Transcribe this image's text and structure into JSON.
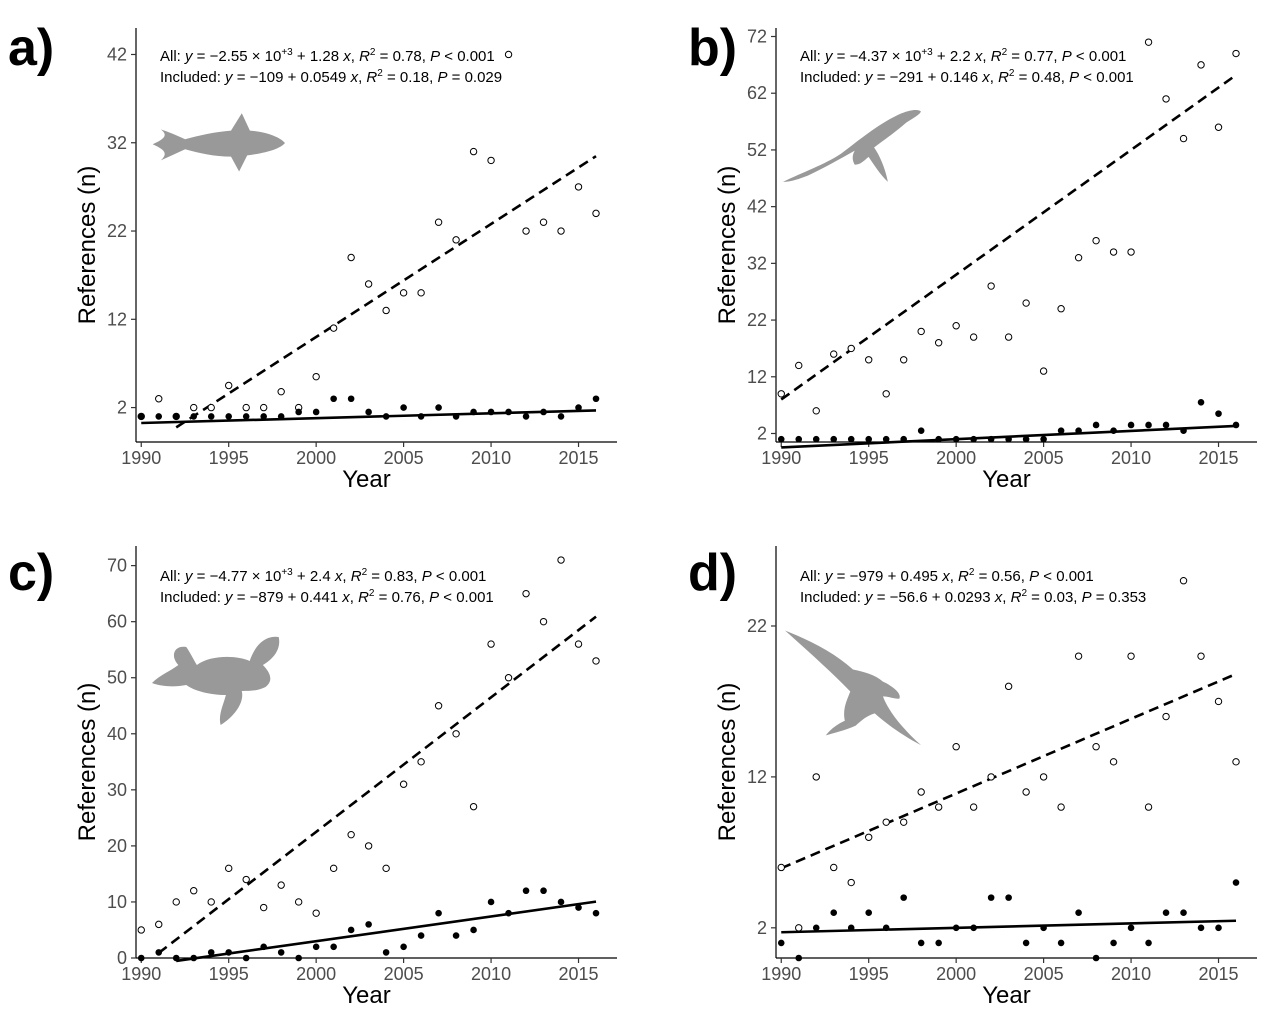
{
  "chart_data": [
    {
      "type": "scatter",
      "panel_label": "a)",
      "silhouette": "tuna-icon",
      "xlabel": "Year",
      "ylabel": "References (n)",
      "xlim": [
        1989.7,
        2017.2
      ],
      "ylim": [
        -1.9,
        45
      ],
      "x_ticks": [
        1990,
        1995,
        2000,
        2005,
        2010,
        2015
      ],
      "y_ticks": [
        2,
        12,
        22,
        32,
        42
      ],
      "equation_all": {
        "prefix": "All: ",
        "lhs": "y",
        "eq": " = −2.55 × 10",
        "exp": "+3",
        "rest": " + 1.28 ",
        "xvar": "x",
        "r2_label": ", R",
        "r2_exp": "2",
        "r2_value": " = 0.78, ",
        "p_label": "P",
        "p_value": " < 0.001"
      },
      "equation_included": {
        "prefix": "Included: ",
        "lhs": "y",
        "eq": " = −109 + 0.0549 ",
        "xvar": "x",
        "r2_label": ", R",
        "r2_exp": "2",
        "r2_value": " = 0.18, ",
        "p_label": "P",
        "p_value": " = 0.029"
      },
      "fit_all": {
        "intercept": -2550,
        "slope": 1.28,
        "x_range": [
          1992,
          2016
        ]
      },
      "fit_included": {
        "intercept": -109,
        "slope": 0.0549,
        "x_range": [
          1990,
          2016
        ]
      },
      "series": [
        {
          "name": "All",
          "marker": "open",
          "x": [
            1990,
            1991,
            1992,
            1993,
            1994,
            1995,
            1996,
            1997,
            1998,
            1999,
            2000,
            2001,
            2002,
            2003,
            2004,
            2005,
            2006,
            2007,
            2008,
            2009,
            2010,
            2011,
            2012,
            2013,
            2014,
            2015,
            2016
          ],
          "y": [
            1,
            3,
            1,
            2,
            2,
            4.5,
            2,
            2,
            3.8,
            2,
            5.5,
            11,
            19,
            16,
            13,
            15,
            15,
            23,
            21,
            31,
            30,
            42,
            22,
            23,
            22,
            27,
            24
          ]
        },
        {
          "name": "Included",
          "marker": "filled",
          "x": [
            1990,
            1991,
            1992,
            1993,
            1994,
            1995,
            1996,
            1997,
            1998,
            1999,
            2000,
            2001,
            2002,
            2003,
            2004,
            2005,
            2006,
            2007,
            2008,
            2009,
            2010,
            2011,
            2012,
            2013,
            2014,
            2015,
            2016
          ],
          "y": [
            1,
            1,
            1,
            1,
            1,
            1,
            1,
            1,
            1,
            1.5,
            1.5,
            3,
            3,
            1.5,
            1,
            2,
            1,
            2,
            1,
            1.5,
            1.5,
            1.5,
            1,
            1.5,
            1,
            2,
            3
          ]
        }
      ]
    },
    {
      "type": "scatter",
      "panel_label": "b)",
      "silhouette": "whale-icon",
      "xlabel": "Year",
      "ylabel": "References (n)",
      "xlim": [
        1989.7,
        2017.2
      ],
      "ylim": [
        0.5,
        73.5
      ],
      "x_ticks": [
        1990,
        1995,
        2000,
        2005,
        2010,
        2015
      ],
      "y_ticks": [
        2,
        12,
        22,
        32,
        42,
        52,
        62,
        72
      ],
      "equation_all": {
        "prefix": "All: ",
        "lhs": "y",
        "eq": " = −4.37 × 10",
        "exp": "+3",
        "rest": " + 2.2 ",
        "xvar": "x",
        "r2_label": ", R",
        "r2_exp": "2",
        "r2_value": " = 0.77, ",
        "p_label": "P",
        "p_value": " < 0.001"
      },
      "equation_included": {
        "prefix": "Included: ",
        "lhs": "y",
        "eq": " = −291 + 0.146 ",
        "xvar": "x",
        "r2_label": ", R",
        "r2_exp": "2",
        "r2_value": " = 0.48, ",
        "p_label": "P",
        "p_value": " < 0.001"
      },
      "fit_all": {
        "intercept": -4370,
        "slope": 2.2,
        "x_range": [
          1990,
          2016
        ]
      },
      "fit_included": {
        "intercept": -291,
        "slope": 0.146,
        "x_range": [
          1990,
          2016
        ]
      },
      "series": [
        {
          "name": "All",
          "marker": "open",
          "x": [
            1990,
            1991,
            1992,
            1993,
            1994,
            1995,
            1996,
            1997,
            1998,
            1999,
            2000,
            2001,
            2002,
            2003,
            2004,
            2005,
            2006,
            2007,
            2008,
            2009,
            2010,
            2011,
            2012,
            2013,
            2014,
            2015,
            2016
          ],
          "y": [
            9,
            14,
            6,
            16,
            17,
            15,
            9,
            15,
            20,
            18,
            21,
            19,
            28,
            19,
            25,
            13,
            24,
            33,
            36,
            34,
            34,
            71,
            61,
            54,
            67,
            56,
            69
          ]
        },
        {
          "name": "Included",
          "marker": "filled",
          "x": [
            1990,
            1991,
            1992,
            1993,
            1994,
            1995,
            1996,
            1997,
            1998,
            1999,
            2000,
            2001,
            2002,
            2003,
            2004,
            2005,
            2006,
            2007,
            2008,
            2009,
            2010,
            2011,
            2012,
            2013,
            2014,
            2015,
            2016
          ],
          "y": [
            1,
            1,
            1,
            1,
            1,
            1,
            1,
            1,
            2.5,
            1,
            1,
            1,
            1,
            1,
            1,
            1,
            2.5,
            2.5,
            3.5,
            2.5,
            3.5,
            3.5,
            3.5,
            2.5,
            7.5,
            5.5,
            3.5
          ]
        }
      ]
    },
    {
      "type": "scatter",
      "panel_label": "c)",
      "silhouette": "sea-turtle-icon",
      "xlabel": "Year",
      "ylabel": "References (n)",
      "xlim": [
        1989.7,
        2017.2
      ],
      "ylim": [
        0,
        73.5
      ],
      "x_ticks": [
        1990,
        1995,
        2000,
        2005,
        2010,
        2015
      ],
      "y_ticks": [
        0,
        10,
        20,
        30,
        40,
        50,
        60,
        70
      ],
      "equation_all": {
        "prefix": "All: ",
        "lhs": "y",
        "eq": " = −4.77 × 10",
        "exp": "+3",
        "rest": " + 2.4 ",
        "xvar": "x",
        "r2_label": ", R",
        "r2_exp": "2",
        "r2_value": " = 0.83, ",
        "p_label": "P",
        "p_value": " < 0.001"
      },
      "equation_included": {
        "prefix": "Included: ",
        "lhs": "y",
        "eq": " = −879 + 0.441 ",
        "xvar": "x",
        "r2_label": ", R",
        "r2_exp": "2",
        "r2_value": " = 0.76, ",
        "p_label": "P",
        "p_value": " < 0.001"
      },
      "fit_all": {
        "intercept": -4777.5,
        "slope": 2.4,
        "x_range": [
          1991,
          2016
        ]
      },
      "fit_included": {
        "intercept": -879,
        "slope": 0.441,
        "x_range": [
          1992,
          2016
        ]
      },
      "series": [
        {
          "name": "All",
          "marker": "open",
          "x": [
            1990,
            1991,
            1992,
            1993,
            1994,
            1995,
            1996,
            1997,
            1998,
            1999,
            2000,
            2001,
            2002,
            2003,
            2004,
            2005,
            2006,
            2007,
            2008,
            2009,
            2010,
            2011,
            2012,
            2013,
            2014,
            2015,
            2016
          ],
          "y": [
            5,
            6,
            10,
            12,
            10,
            16,
            14,
            9,
            13,
            10,
            8,
            16,
            22,
            20,
            16,
            31,
            35,
            45,
            40,
            27,
            56,
            50,
            65,
            60,
            71,
            56,
            53
          ]
        },
        {
          "name": "Included",
          "marker": "filled",
          "x": [
            1990,
            1991,
            1992,
            1993,
            1994,
            1995,
            1996,
            1997,
            1998,
            1999,
            2000,
            2001,
            2002,
            2003,
            2004,
            2005,
            2006,
            2007,
            2008,
            2009,
            2010,
            2011,
            2012,
            2013,
            2014,
            2015,
            2016
          ],
          "y": [
            0,
            1,
            0,
            0,
            1,
            1,
            0,
            2,
            1,
            0,
            2,
            2,
            5,
            6,
            1,
            2,
            4,
            8,
            4,
            5,
            10,
            8,
            12,
            12,
            10,
            9,
            8
          ]
        }
      ]
    },
    {
      "type": "scatter",
      "panel_label": "d)",
      "silhouette": "albatross-icon",
      "xlabel": "Year",
      "ylabel": "References (n)",
      "xlim": [
        1989.7,
        2017.2
      ],
      "ylim": [
        0,
        27.3
      ],
      "x_ticks": [
        1990,
        1995,
        2000,
        2005,
        2010,
        2015
      ],
      "y_ticks": [
        2,
        12,
        22
      ],
      "equation_all": {
        "prefix": "All: ",
        "lhs": "y",
        "eq": " = −979 + 0.495 ",
        "xvar": "x",
        "r2_label": ", R",
        "r2_exp": "2",
        "r2_value": " = 0.56, ",
        "p_label": "P",
        "p_value": " < 0.001"
      },
      "equation_included": {
        "prefix": "Included: ",
        "lhs": "y",
        "eq": " = −56.6 + 0.0293 ",
        "xvar": "x",
        "r2_label": ", R",
        "r2_exp": "2",
        "r2_value": " = 0.03, ",
        "p_label": "P",
        "p_value": " = 0.353"
      },
      "fit_all": {
        "intercept": -979.1,
        "slope": 0.495,
        "x_range": [
          1990,
          2016
        ]
      },
      "fit_included": {
        "intercept": -56.6,
        "slope": 0.0293,
        "x_range": [
          1990,
          2016
        ]
      },
      "series": [
        {
          "name": "All",
          "marker": "open",
          "x": [
            1990,
            1991,
            1992,
            1993,
            1994,
            1995,
            1996,
            1997,
            1998,
            1999,
            2000,
            2001,
            2002,
            2003,
            2004,
            2005,
            2006,
            2007,
            2008,
            2009,
            2010,
            2011,
            2012,
            2013,
            2014,
            2015,
            2016
          ],
          "y": [
            6,
            2,
            12,
            6,
            5,
            8,
            9,
            9,
            11,
            10,
            14,
            10,
            12,
            18,
            11,
            12,
            10,
            20,
            14,
            13,
            20,
            10,
            16,
            25,
            20,
            17,
            13
          ]
        },
        {
          "name": "Included",
          "marker": "filled",
          "x": [
            1990,
            1991,
            1992,
            1993,
            1994,
            1995,
            1996,
            1997,
            1998,
            1999,
            2000,
            2001,
            2002,
            2003,
            2004,
            2005,
            2006,
            2007,
            2008,
            2009,
            2010,
            2011,
            2012,
            2013,
            2014,
            2015,
            2016
          ],
          "y": [
            1,
            0,
            2,
            3,
            2,
            3,
            2,
            4,
            1,
            1,
            2,
            2,
            4,
            4,
            1,
            2,
            1,
            3,
            0,
            1,
            2,
            1,
            3,
            3,
            2,
            2,
            5
          ]
        }
      ]
    }
  ]
}
